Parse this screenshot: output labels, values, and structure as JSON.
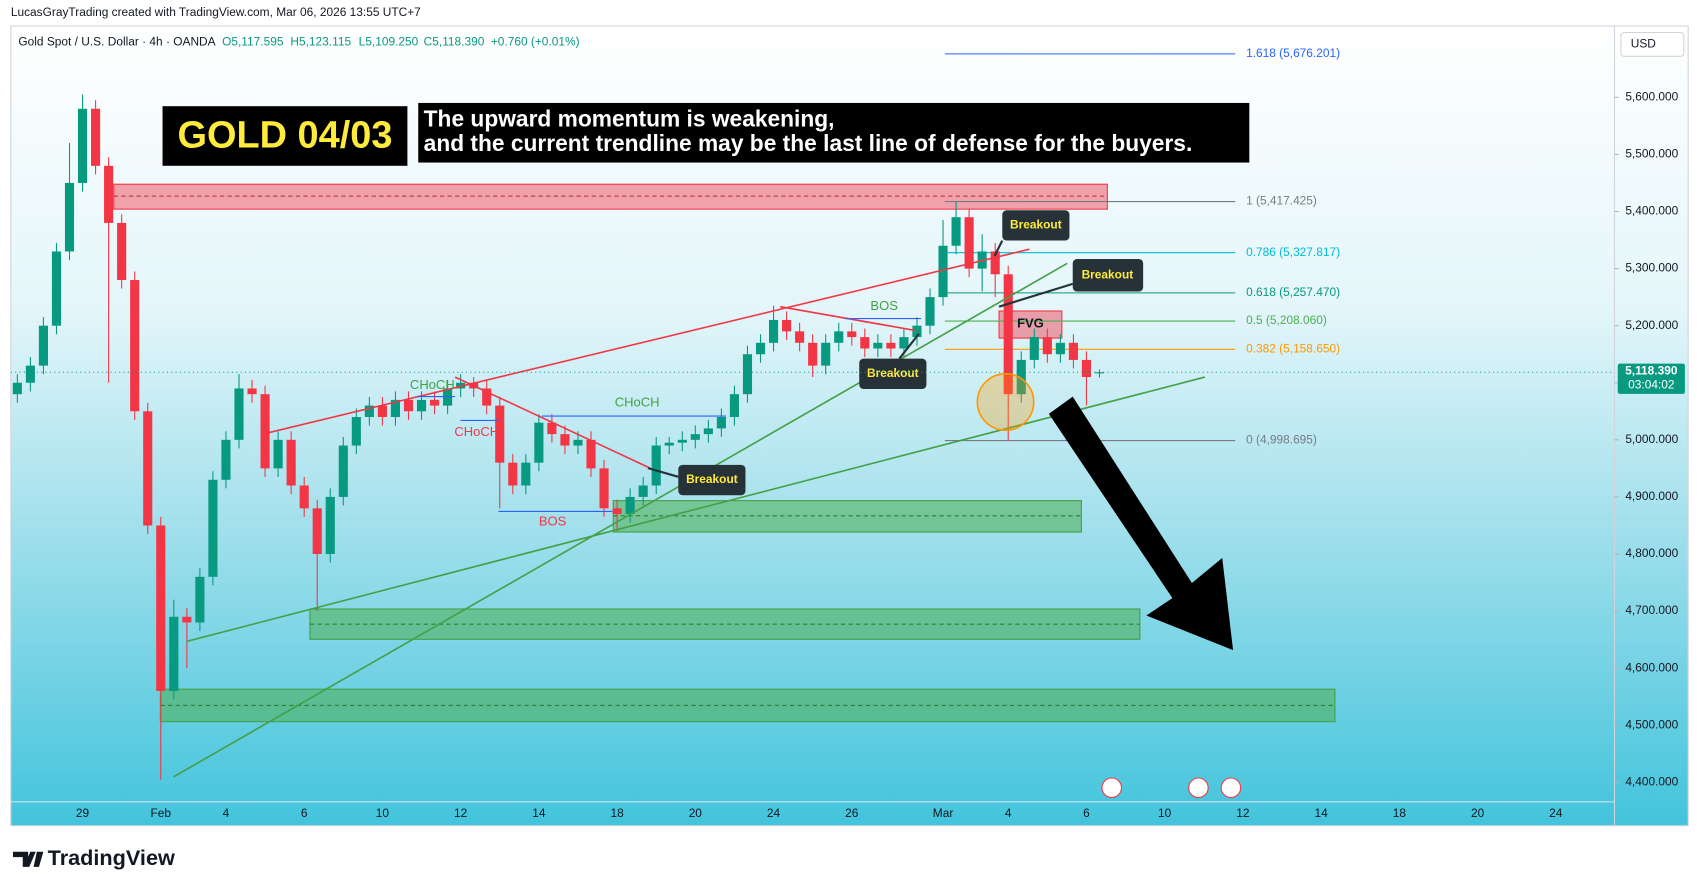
{
  "header": {
    "caption": "LucasGrayTrading created with TradingView.com, Mar 06, 2026 13:55 UTC+7",
    "symbol": "Gold Spot / U.S. Dollar · 4h · OANDA",
    "open": "O5,117.595",
    "high": "H5,123.115",
    "low": "L5,109.250",
    "close": "C5,118.390",
    "change": "+0.760 (+0.01%)",
    "currency": "USD"
  },
  "watermark": "TradingView",
  "chart_data": {
    "type": "candlestick",
    "title": "GOLD 04/03",
    "subtitle": [
      "The upward momentum is weakening,",
      "and the current trendline may be the last line of defense for the buyers."
    ],
    "up_color": "#089981",
    "down_color": "#f23645",
    "categories": [
      null,
      null,
      null,
      null,
      null,
      "29",
      null,
      null,
      null,
      null,
      null,
      "Feb",
      null,
      null,
      null,
      null,
      "4",
      null,
      null,
      null,
      null,
      null,
      "6",
      null,
      null,
      null,
      null,
      null,
      "10",
      null,
      null,
      null,
      null,
      null,
      "12",
      null,
      null,
      null,
      null,
      null,
      "14",
      null,
      null,
      null,
      null,
      null,
      "18",
      null,
      null,
      null,
      null,
      null,
      "20",
      null,
      null,
      null,
      null,
      null,
      "24",
      null,
      null,
      null,
      null,
      null,
      "26",
      null,
      null,
      null,
      null,
      null,
      null,
      "Mar",
      null,
      null,
      null,
      null,
      "4",
      null,
      null,
      null,
      null,
      null,
      "6",
      null,
      null,
      null,
      null,
      null,
      "10",
      null,
      null,
      null,
      null,
      null,
      "12",
      null,
      null,
      null,
      null,
      null,
      "14",
      null,
      null,
      null,
      null,
      null,
      "18",
      null,
      null,
      null,
      null,
      null,
      "20",
      null,
      null,
      null,
      null,
      null,
      "24",
      null,
      null,
      null,
      null
    ],
    "open": [
      5080,
      5100,
      5130,
      5200,
      5330,
      5450,
      5580,
      5480,
      5380,
      5280,
      5050,
      4850,
      4560,
      4690,
      4680,
      4760,
      4930,
      5000,
      5090,
      5080,
      4950,
      5000,
      4920,
      4880,
      4800,
      4900,
      4990,
      5040,
      5060,
      5040,
      5070,
      5050,
      5070,
      5060,
      5090,
      5100,
      5090,
      5060,
      4960,
      4920,
      4960,
      5030,
      5010,
      4990,
      5000,
      4950,
      4880,
      4870,
      4900,
      4920,
      4990,
      4995,
      5000,
      5010,
      5020,
      5040,
      5080,
      5150,
      5170,
      5210,
      5190,
      5170,
      5130,
      5170,
      5190,
      5180,
      5160,
      5170,
      5160,
      5180,
      5200,
      5250,
      5340,
      5390,
      5300,
      5330,
      5290,
      5080,
      5140,
      5180,
      5150,
      5170,
      5140,
      5117.595,
      null,
      null,
      null,
      null,
      null,
      null,
      null,
      null,
      null,
      null,
      null,
      null,
      null,
      null,
      null,
      null,
      null,
      null,
      null,
      null,
      null,
      null,
      null,
      null,
      null,
      null,
      null,
      null,
      null,
      null,
      null,
      null,
      null,
      null,
      null,
      null,
      null,
      null,
      null
    ],
    "high": [
      5115,
      5145,
      5215,
      5345,
      5520,
      5605,
      5595,
      5495,
      5395,
      5295,
      5065,
      4865,
      4720,
      4705,
      4775,
      4945,
      5015,
      5115,
      5105,
      5095,
      5015,
      5015,
      4935,
      4895,
      4915,
      5005,
      5055,
      5075,
      5075,
      5085,
      5085,
      5085,
      5085,
      5105,
      5115,
      5110,
      5105,
      5075,
      4975,
      4975,
      5045,
      5045,
      5025,
      5015,
      5015,
      4965,
      4895,
      4915,
      4935,
      5005,
      5005,
      5015,
      5025,
      5035,
      5055,
      5095,
      5165,
      5185,
      5235,
      5225,
      5205,
      5185,
      5185,
      5205,
      5205,
      5195,
      5185,
      5185,
      5195,
      5215,
      5265,
      5385,
      5417.425,
      5405,
      5360,
      5345,
      5305,
      5155,
      5195,
      5195,
      5185,
      5185,
      5155,
      5123.115,
      null,
      null,
      null,
      null,
      null,
      null,
      null,
      null,
      null,
      null,
      null,
      null,
      null,
      null,
      null,
      null,
      null,
      null,
      null,
      null,
      null,
      null,
      null,
      null,
      null,
      null,
      null,
      null,
      null,
      null,
      null,
      null,
      null,
      null,
      null,
      null,
      null,
      null,
      null
    ],
    "low": [
      5065,
      5085,
      5115,
      5185,
      5315,
      5435,
      5465,
      5100,
      5265,
      5035,
      4835,
      4405,
      4545,
      4600,
      4665,
      4745,
      4915,
      4985,
      5065,
      4935,
      4935,
      4905,
      4865,
      4700,
      4785,
      4885,
      4975,
      5025,
      5025,
      5025,
      5035,
      5035,
      5045,
      5045,
      5075,
      5075,
      5045,
      4880,
      4905,
      4905,
      4945,
      4995,
      4975,
      4975,
      4935,
      4865,
      4840,
      4855,
      4885,
      4905,
      4975,
      4980,
      4985,
      4995,
      5005,
      5025,
      5065,
      5135,
      5155,
      5175,
      5155,
      5110,
      5115,
      5155,
      5165,
      5145,
      5145,
      5145,
      5145,
      5165,
      5185,
      5235,
      5325,
      5285,
      5260,
      5250,
      4998.695,
      5065,
      5125,
      5135,
      5135,
      5125,
      5060,
      5109.25,
      null,
      null,
      null,
      null,
      null,
      null,
      null,
      null,
      null,
      null,
      null,
      null,
      null,
      null,
      null,
      null,
      null,
      null,
      null,
      null,
      null,
      null,
      null,
      null,
      null,
      null,
      null,
      null,
      null,
      null,
      null,
      null,
      null,
      null,
      null,
      null,
      null,
      null,
      null
    ],
    "close": [
      5100,
      5130,
      5200,
      5330,
      5450,
      5580,
      5480,
      5380,
      5280,
      5050,
      4850,
      4560,
      4690,
      4680,
      4760,
      4930,
      5000,
      5090,
      5080,
      4950,
      5000,
      4920,
      4880,
      4800,
      4900,
      4990,
      5040,
      5060,
      5040,
      5070,
      5050,
      5070,
      5060,
      5090,
      5100,
      5090,
      5060,
      4960,
      4920,
      4960,
      5030,
      5010,
      4990,
      5000,
      4950,
      4880,
      4870,
      4900,
      4920,
      4990,
      4995,
      5000,
      5010,
      5020,
      5040,
      5080,
      5150,
      5170,
      5210,
      5190,
      5170,
      5130,
      5170,
      5190,
      5180,
      5160,
      5170,
      5160,
      5180,
      5200,
      5250,
      5340,
      5390,
      5300,
      5330,
      5290,
      5080,
      5140,
      5180,
      5150,
      5170,
      5140,
      5110,
      5118.39,
      null,
      null,
      null,
      null,
      null,
      null,
      null,
      null,
      null,
      null,
      null,
      null,
      null,
      null,
      null,
      null,
      null,
      null,
      null,
      null,
      null,
      null,
      null,
      null,
      null,
      null,
      null,
      null,
      null,
      null,
      null,
      null,
      null,
      null,
      null,
      null,
      null,
      null,
      null
    ],
    "ylim": [
      4324,
      5725
    ],
    "yticks": [
      {
        "value": 4400,
        "label": "4,400.000"
      },
      {
        "value": 4500,
        "label": "4,500.000"
      },
      {
        "value": 4600,
        "label": "4,600.000"
      },
      {
        "value": 4700,
        "label": "4,700.000"
      },
      {
        "value": 4800,
        "label": "4,800.000"
      },
      {
        "value": 4900,
        "label": "4,900.000"
      },
      {
        "value": 5000,
        "label": "5,000.000"
      },
      {
        "value": 5100,
        "label": "5,100.000"
      },
      {
        "value": 5200,
        "label": "5,200.000"
      },
      {
        "value": 5300,
        "label": "5,300.000"
      },
      {
        "value": 5400,
        "label": "5,400.000"
      },
      {
        "value": 5500,
        "label": "5,500.000"
      },
      {
        "value": 5600,
        "label": "5,600.000"
      }
    ],
    "last_price": {
      "value": 5118.39,
      "label": "5,118.390"
    },
    "countdown": "03:04:02",
    "fib_levels": [
      {
        "value": 5676.201,
        "label": "1.618 (5,676.201)",
        "color": "#2962ff"
      },
      {
        "value": 5417.425,
        "label": "1 (5,417.425)",
        "color": "#787b86"
      },
      {
        "value": 5327.817,
        "label": "0.786 (5,327.817)",
        "color": "#00bcd4"
      },
      {
        "value": 5257.47,
        "label": "0.618 (5,257.470)",
        "color": "#089981"
      },
      {
        "value": 5208.06,
        "label": "0.5 (5,208.060)",
        "color": "#4caf50"
      },
      {
        "value": 5158.65,
        "label": "0.382 (5,158.650)",
        "color": "#ff9800"
      },
      {
        "value": 4998.695,
        "label": "0 (4,998.695)",
        "color": "#787b86"
      }
    ],
    "annotations": [
      "Breakout",
      "Breakout",
      "Breakout",
      "Breakout",
      "BOS",
      "BOS",
      "CHoCH",
      "CHoCH",
      "CHoCH",
      "FVG"
    ]
  }
}
